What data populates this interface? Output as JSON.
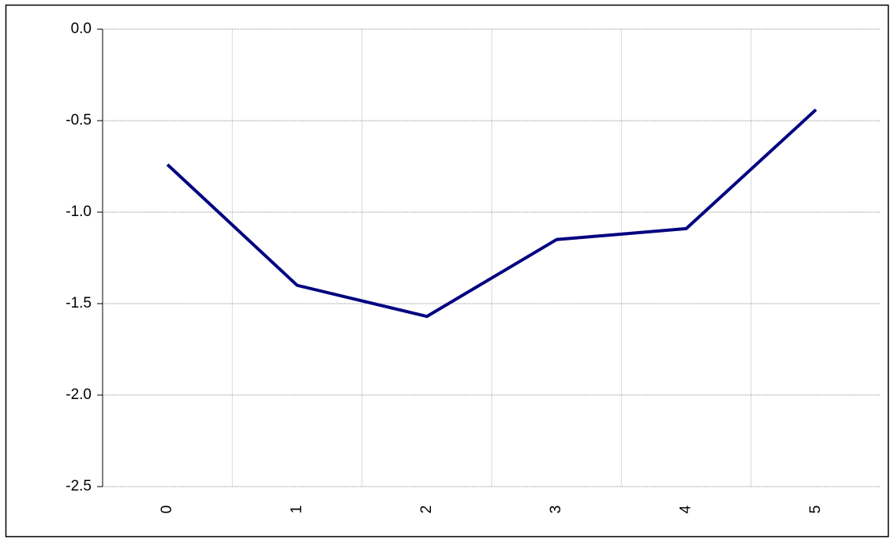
{
  "chart_data": {
    "type": "line",
    "categories": [
      "0",
      "1",
      "2",
      "3",
      "4",
      "5"
    ],
    "series": [
      {
        "color": "#000080",
        "values": [
          -0.74,
          -1.4,
          -1.57,
          -1.15,
          -1.09,
          -0.44
        ]
      }
    ],
    "ylim": [
      -2.5,
      0
    ],
    "yticks": [
      {
        "value": 0,
        "label": "0.0"
      },
      -0.5,
      {
        "value": -1,
        "label": "-1.0"
      },
      -1.5,
      {
        "value": -2,
        "label": "-2.0"
      },
      -2.5
    ],
    "grid": true
  }
}
